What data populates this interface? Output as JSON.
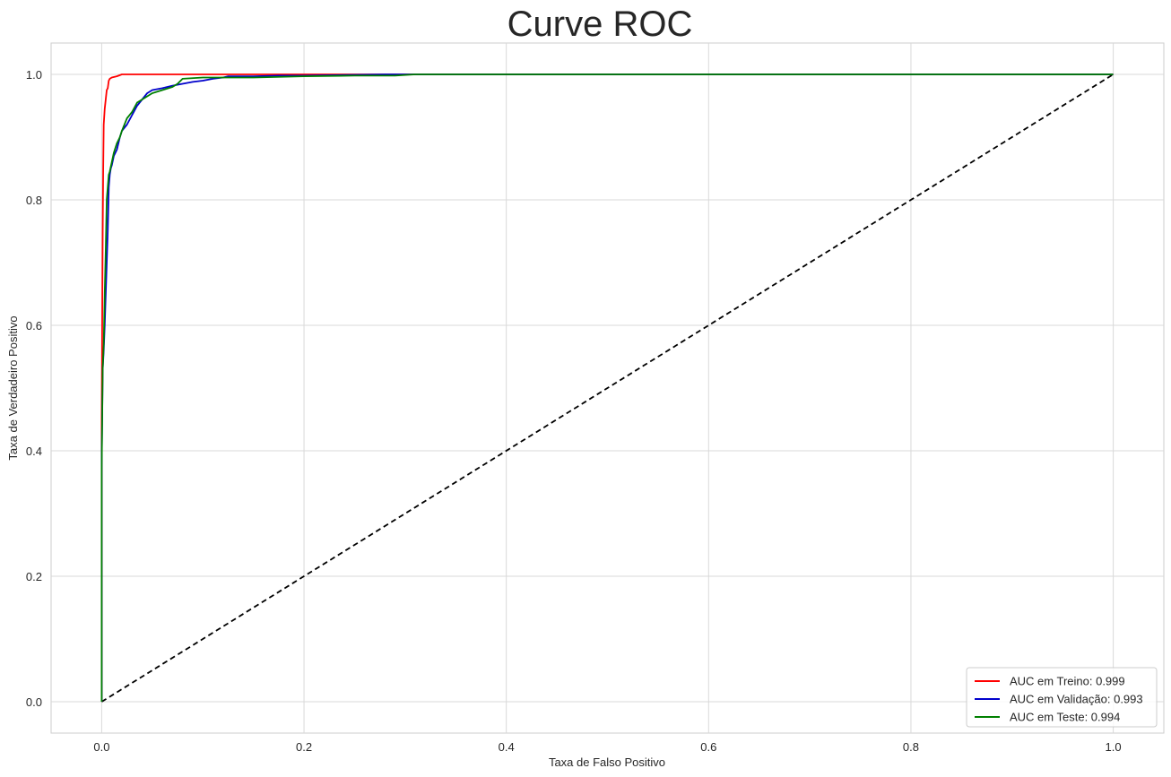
{
  "chart_data": {
    "type": "line",
    "title": "Curve ROC",
    "xlabel": "Taxa de Falso Positivo",
    "ylabel": "Taxa de Verdadeiro Positivo",
    "xlim": [
      -0.05,
      1.05
    ],
    "ylim": [
      -0.05,
      1.05
    ],
    "xticks": [
      0.0,
      0.2,
      0.4,
      0.6,
      0.8,
      1.0
    ],
    "yticks": [
      0.0,
      0.2,
      0.4,
      0.6,
      0.8,
      1.0
    ],
    "xtick_labels": [
      "0.0",
      "0.2",
      "0.4",
      "0.6",
      "0.8",
      "1.0"
    ],
    "ytick_labels": [
      "0.0",
      "0.2",
      "0.4",
      "0.6",
      "0.8",
      "1.0"
    ],
    "grid": true,
    "legend_position": "lower-right",
    "series": [
      {
        "name": "AUC em Treino: 0.999",
        "color": "#ff0000",
        "x": [
          0.0,
          0.0,
          0.0005,
          0.001,
          0.0015,
          0.002,
          0.003,
          0.004,
          0.005,
          0.006,
          0.007,
          0.008,
          0.01,
          0.015,
          0.02,
          0.05,
          0.1,
          0.2,
          0.3,
          0.5,
          1.0
        ],
        "y": [
          0.0,
          0.45,
          0.6,
          0.75,
          0.85,
          0.92,
          0.945,
          0.96,
          0.975,
          0.978,
          0.99,
          0.993,
          0.995,
          0.997,
          1.0,
          1.0,
          1.0,
          1.0,
          1.0,
          1.0,
          1.0
        ]
      },
      {
        "name": "AUC em Validação: 0.993",
        "color": "#0000cc",
        "x": [
          0.0,
          0.0,
          0.001,
          0.002,
          0.003,
          0.004,
          0.005,
          0.006,
          0.007,
          0.008,
          0.009,
          0.01,
          0.012,
          0.015,
          0.018,
          0.02,
          0.025,
          0.03,
          0.035,
          0.04,
          0.045,
          0.05,
          0.06,
          0.07,
          0.08,
          0.09,
          0.1,
          0.11,
          0.12,
          0.125,
          0.15,
          0.175,
          0.2,
          0.28,
          0.3,
          0.5,
          1.0
        ],
        "y": [
          0.0,
          0.38,
          0.53,
          0.56,
          0.6,
          0.65,
          0.7,
          0.75,
          0.82,
          0.84,
          0.85,
          0.855,
          0.87,
          0.88,
          0.9,
          0.91,
          0.92,
          0.935,
          0.95,
          0.96,
          0.97,
          0.975,
          0.978,
          0.982,
          0.985,
          0.988,
          0.99,
          0.993,
          0.995,
          0.997,
          0.997,
          0.998,
          0.998,
          1.0,
          1.0,
          1.0,
          1.0
        ]
      },
      {
        "name": "AUC em Teste: 0.994",
        "color": "#008000",
        "x": [
          0.0,
          0.0,
          0.001,
          0.002,
          0.003,
          0.004,
          0.005,
          0.006,
          0.007,
          0.008,
          0.01,
          0.012,
          0.015,
          0.018,
          0.02,
          0.025,
          0.03,
          0.035,
          0.04,
          0.045,
          0.05,
          0.06,
          0.07,
          0.075,
          0.08,
          0.1,
          0.15,
          0.2,
          0.25,
          0.29,
          0.31,
          0.5,
          1.0
        ],
        "y": [
          0.0,
          0.37,
          0.53,
          0.57,
          0.65,
          0.72,
          0.8,
          0.82,
          0.84,
          0.845,
          0.86,
          0.875,
          0.89,
          0.9,
          0.91,
          0.93,
          0.94,
          0.955,
          0.96,
          0.965,
          0.97,
          0.975,
          0.98,
          0.985,
          0.993,
          0.995,
          0.995,
          0.997,
          0.998,
          0.998,
          1.0,
          1.0,
          1.0
        ]
      },
      {
        "name": "",
        "color": "#000000",
        "dashed": true,
        "x": [
          0.0,
          1.0
        ],
        "y": [
          0.0,
          1.0
        ]
      }
    ]
  }
}
